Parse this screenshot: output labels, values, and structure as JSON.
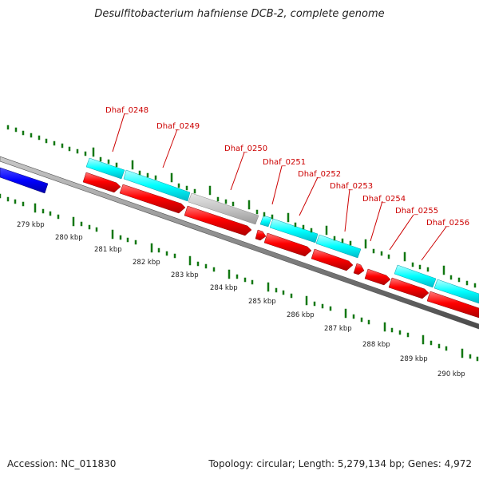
{
  "header": {
    "title": "Desulfitobacterium hafniense DCB-2, complete genome"
  },
  "footer": {
    "accession": "Accession: NC_011830",
    "summary": "Topology: circular; Length: 5,279,134 bp; Genes: 4,972"
  },
  "colors": {
    "forward_cds": "#ff0000",
    "reverse_cds": "#00ffff",
    "other_feature": "#c0c0c0",
    "prior_feature": "#0000ff",
    "backbone": "#808080",
    "tick_marks": "#117711",
    "gene_labels": "#cc0000",
    "scale_labels": "#222222"
  },
  "scale_labels": [
    "279 kbp",
    "280 kbp",
    "281 kbp",
    "282 kbp",
    "283 kbp",
    "284 kbp",
    "285 kbp",
    "286 kbp",
    "287 kbp",
    "288 kbp",
    "289 kbp",
    "290 kbp"
  ],
  "gene_labels": [
    "Dhaf_0248",
    "Dhaf_0249",
    "Dhaf_0250",
    "Dhaf_0251",
    "Dhaf_0252",
    "Dhaf_0253",
    "Dhaf_0254",
    "Dhaf_0255",
    "Dhaf_0256"
  ]
}
